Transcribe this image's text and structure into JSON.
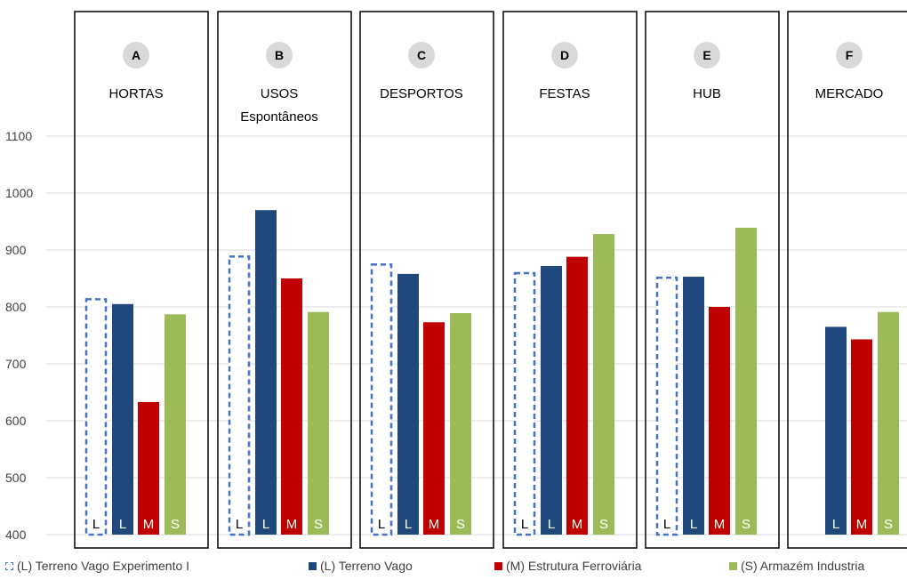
{
  "chart_data": {
    "type": "bar",
    "ylim": [
      400,
      1100
    ],
    "yticks": [
      400,
      500,
      600,
      700,
      800,
      900,
      1000,
      1100
    ],
    "grid": true,
    "legend_position": "bottom",
    "panels": [
      {
        "letter": "A",
        "title_lines": [
          "HORTAS"
        ],
        "values": [
          815,
          805,
          633,
          787
        ]
      },
      {
        "letter": "B",
        "title_lines": [
          "USOS",
          "Espontâneos"
        ],
        "values": [
          890,
          970,
          850,
          791
        ]
      },
      {
        "letter": "C",
        "title_lines": [
          "DESPORTOS"
        ],
        "values": [
          876,
          858,
          773,
          789
        ]
      },
      {
        "letter": "D",
        "title_lines": [
          "FESTAS"
        ],
        "values": [
          861,
          872,
          888,
          928
        ]
      },
      {
        "letter": "E",
        "title_lines": [
          "HUB"
        ],
        "values": [
          853,
          853,
          800,
          939
        ]
      },
      {
        "letter": "F",
        "title_lines": [
          "MERCADO"
        ],
        "values": [
          null,
          765,
          743,
          791
        ]
      }
    ],
    "series": [
      {
        "name": "(L) Terreno Vago Experimento I",
        "code": "L",
        "color": "#4472C4",
        "style": "dashed",
        "label_color": "#000000"
      },
      {
        "name": "(L) Terreno Vago",
        "code": "L",
        "color": "#1F497D",
        "style": "solid",
        "label_color": "#ffffff"
      },
      {
        "name": "(M) Estrutura Ferroviária",
        "code": "M",
        "color": "#C00000",
        "style": "solid",
        "label_color": "#ffffff"
      },
      {
        "name": "(S) Armazém Industria",
        "code": "S",
        "color": "#9BBB59",
        "style": "solid",
        "label_color": "#ffffff"
      }
    ]
  }
}
